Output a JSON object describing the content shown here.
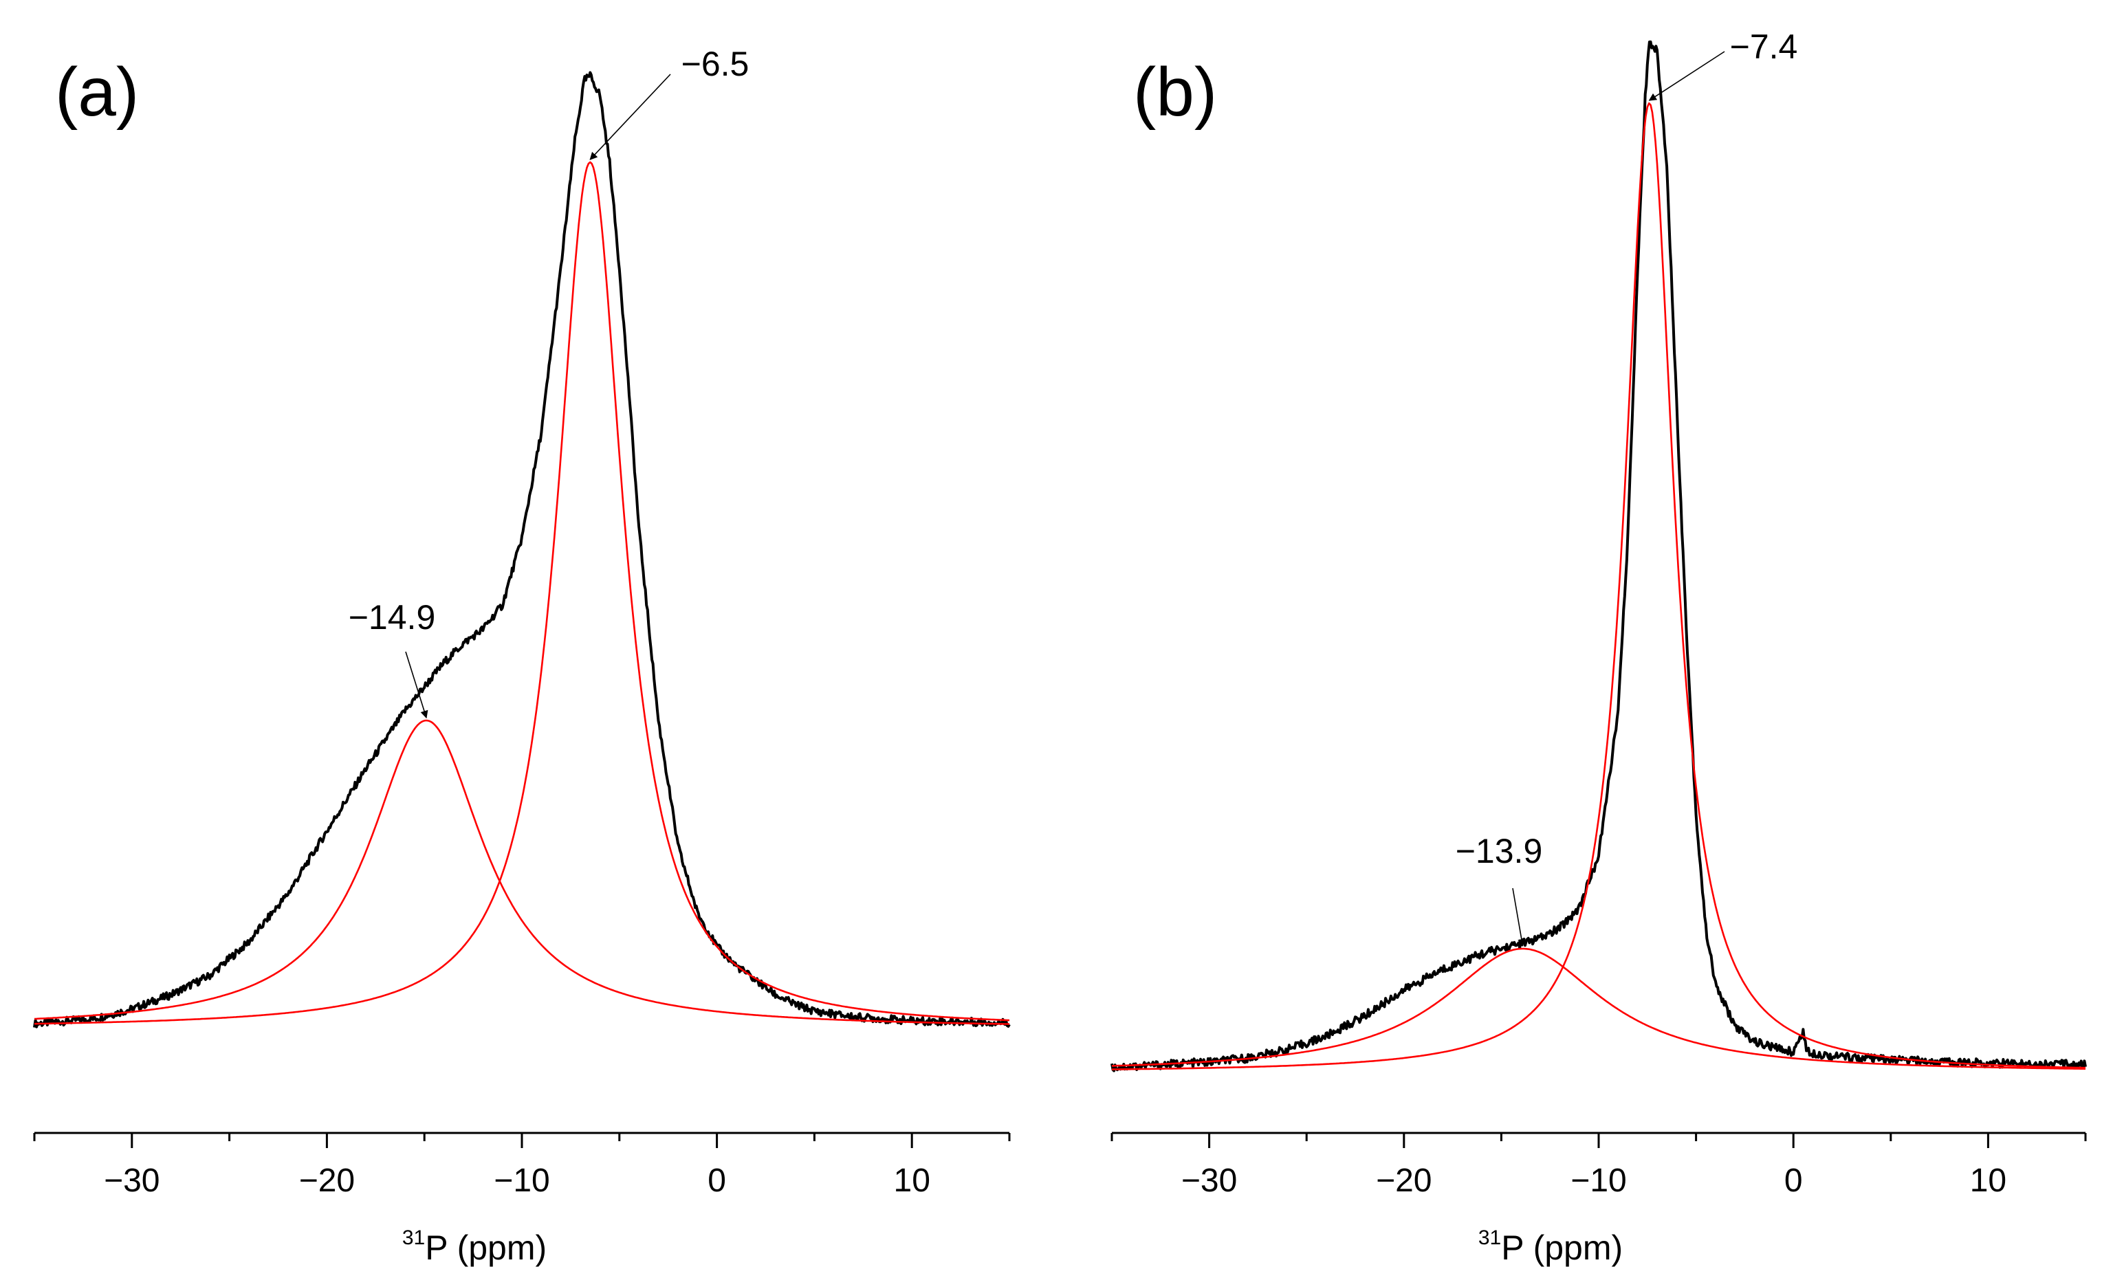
{
  "colors": {
    "experimental": "#000000",
    "fit": "#ff0000"
  },
  "chart_data": [
    {
      "type": "line",
      "panel_label": "(a)",
      "xlabel_sup": "31",
      "xlabel": "P (ppm)",
      "ylabel": "",
      "xlim": [
        -35,
        15
      ],
      "xticks": [
        -30,
        -20,
        -10,
        0,
        10
      ],
      "xtick_labels": [
        "−30",
        "−20",
        "−10",
        "0",
        "10"
      ],
      "yaxis_visible": false,
      "series": [
        {
          "name": "experimental",
          "color": "#000000",
          "points": [
            [
              -35,
              0.015
            ],
            [
              -32,
              0.02
            ],
            [
              -30,
              0.03
            ],
            [
              -28,
              0.045
            ],
            [
              -26,
              0.065
            ],
            [
              -24,
              0.1
            ],
            [
              -22,
              0.15
            ],
            [
              -20,
              0.215
            ],
            [
              -18,
              0.28
            ],
            [
              -17,
              0.31
            ],
            [
              -16,
              0.34
            ],
            [
              -15,
              0.365
            ],
            [
              -14,
              0.39
            ],
            [
              -13,
              0.41
            ],
            [
              -12,
              0.425
            ],
            [
              -11,
              0.45
            ],
            [
              -10,
              0.52
            ],
            [
              -9,
              0.63
            ],
            [
              -8,
              0.8
            ],
            [
              -7.3,
              0.93
            ],
            [
              -6.8,
              0.995
            ],
            [
              -6.5,
              1.0
            ],
            [
              -6,
              0.98
            ],
            [
              -5.5,
              0.91
            ],
            [
              -5,
              0.8
            ],
            [
              -4.5,
              0.67
            ],
            [
              -4,
              0.53
            ],
            [
              -3,
              0.33
            ],
            [
              -2,
              0.2
            ],
            [
              -1,
              0.13
            ],
            [
              0,
              0.095
            ],
            [
              1,
              0.075
            ],
            [
              2,
              0.06
            ],
            [
              3,
              0.045
            ],
            [
              4,
              0.035
            ],
            [
              5,
              0.028
            ],
            [
              7,
              0.022
            ],
            [
              10,
              0.018
            ],
            [
              15,
              0.016
            ]
          ]
        },
        {
          "name": "fit component 1",
          "color": "#ff0000",
          "center": -6.5,
          "amplitude": 0.9,
          "width": 2.1,
          "baseline": 0.01
        },
        {
          "name": "fit component 2",
          "color": "#ff0000",
          "center": -14.9,
          "amplitude": 0.32,
          "width": 3.6,
          "baseline": 0.01
        }
      ],
      "annotations": [
        {
          "text": "−6.5",
          "x": -6.5,
          "target": "fit component 1"
        },
        {
          "text": "−14.9",
          "x": -14.9,
          "target": "fit component 2"
        }
      ]
    },
    {
      "type": "line",
      "panel_label": "(b)",
      "xlabel_sup": "31",
      "xlabel": "P (ppm)",
      "ylabel": "",
      "xlim": [
        -35,
        15
      ],
      "xticks": [
        -30,
        -20,
        -10,
        0,
        10
      ],
      "xtick_labels": [
        "−30",
        "−20",
        "−10",
        "0",
        "10"
      ],
      "yaxis_visible": false,
      "series": [
        {
          "name": "experimental",
          "color": "#000000",
          "points": [
            [
              -35,
              0.005
            ],
            [
              -32,
              0.008
            ],
            [
              -30,
              0.01
            ],
            [
              -28,
              0.014
            ],
            [
              -26,
              0.022
            ],
            [
              -24,
              0.035
            ],
            [
              -22,
              0.055
            ],
            [
              -20,
              0.08
            ],
            [
              -18,
              0.1
            ],
            [
              -16,
              0.115
            ],
            [
              -15,
              0.12
            ],
            [
              -14,
              0.125
            ],
            [
              -13,
              0.13
            ],
            [
              -12,
              0.14
            ],
            [
              -11,
              0.16
            ],
            [
              -10,
              0.21
            ],
            [
              -9,
              0.35
            ],
            [
              -8.5,
              0.52
            ],
            [
              -8,
              0.78
            ],
            [
              -7.6,
              0.95
            ],
            [
              -7.4,
              1.0
            ],
            [
              -7,
              0.99
            ],
            [
              -6.5,
              0.88
            ],
            [
              -6,
              0.65
            ],
            [
              -5.5,
              0.43
            ],
            [
              -5,
              0.25
            ],
            [
              -4.5,
              0.14
            ],
            [
              -4,
              0.085
            ],
            [
              -3,
              0.045
            ],
            [
              -2,
              0.03
            ],
            [
              -1,
              0.024
            ],
            [
              0,
              0.02
            ],
            [
              0.5,
              0.04
            ],
            [
              0.7,
              0.02
            ],
            [
              2,
              0.016
            ],
            [
              5,
              0.012
            ],
            [
              10,
              0.009
            ],
            [
              15,
              0.008
            ]
          ]
        },
        {
          "name": "fit component 1",
          "color": "#ff0000",
          "center": -7.4,
          "amplitude": 0.94,
          "width": 1.55,
          "baseline": 0.0
        },
        {
          "name": "fit component 2",
          "color": "#ff0000",
          "center": -13.9,
          "amplitude": 0.12,
          "width": 5.0,
          "baseline": 0.0
        }
      ],
      "annotations": [
        {
          "text": "−7.4",
          "x": -7.4,
          "target": "fit component 1"
        },
        {
          "text": "−13.9",
          "x": -13.9,
          "target": "fit component 2"
        }
      ]
    }
  ]
}
